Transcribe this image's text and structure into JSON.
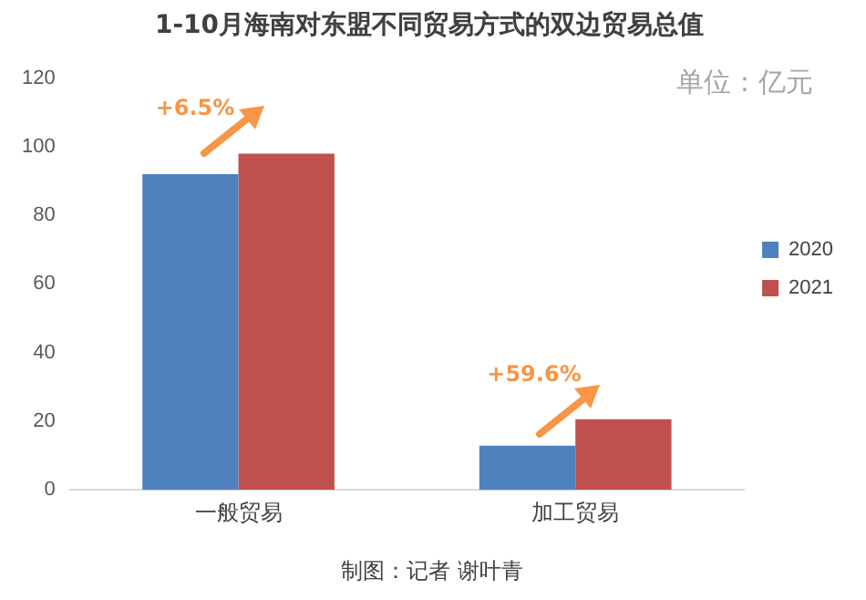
{
  "chart_data": {
    "type": "bar",
    "title": "1-10月海南对东盟不同贸易方式的双边贸易总值",
    "categories": [
      "一般贸易",
      "加工贸易"
    ],
    "series": [
      {
        "name": "2020",
        "color": "#4f81bd",
        "values": [
          92,
          12.9
        ]
      },
      {
        "name": "2021",
        "color": "#c0504d",
        "values": [
          98,
          20.6
        ]
      }
    ],
    "ylim": [
      0,
      120
    ],
    "yticks": [
      0,
      20,
      40,
      60,
      80,
      100,
      120
    ],
    "grid": false,
    "legend": "right",
    "annotations": [
      "+6.5%",
      "+59.6%",
      "单位：亿元",
      "制图：记者 谢叶青"
    ]
  }
}
